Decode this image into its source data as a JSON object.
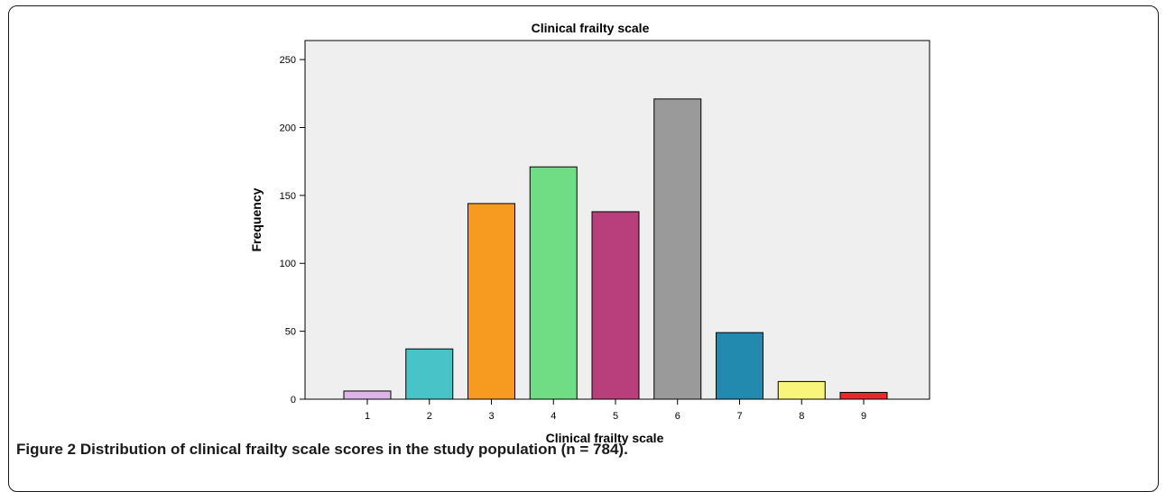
{
  "figure": {
    "label": "Figure 2",
    "caption": "Distribution of clinical frailty scale scores in the study population (n = 784)."
  },
  "chart_data": {
    "type": "bar",
    "title": "Clinical frailty scale",
    "xlabel": "Clinical frailty scale",
    "ylabel": "Frequency",
    "categories": [
      "1",
      "2",
      "3",
      "4",
      "5",
      "6",
      "7",
      "8",
      "9"
    ],
    "values": [
      6,
      37,
      144,
      171,
      138,
      221,
      49,
      13,
      5
    ],
    "colors": [
      "#dfb4e8",
      "#48c3c7",
      "#f79a20",
      "#70dd84",
      "#b93f7c",
      "#9a9a9a",
      "#228aae",
      "#f9f57b",
      "#e8282e"
    ],
    "ylim": [
      0,
      264
    ],
    "yticks": [
      0,
      50,
      100,
      150,
      200,
      250
    ],
    "grid": false,
    "background": "#efefef"
  }
}
